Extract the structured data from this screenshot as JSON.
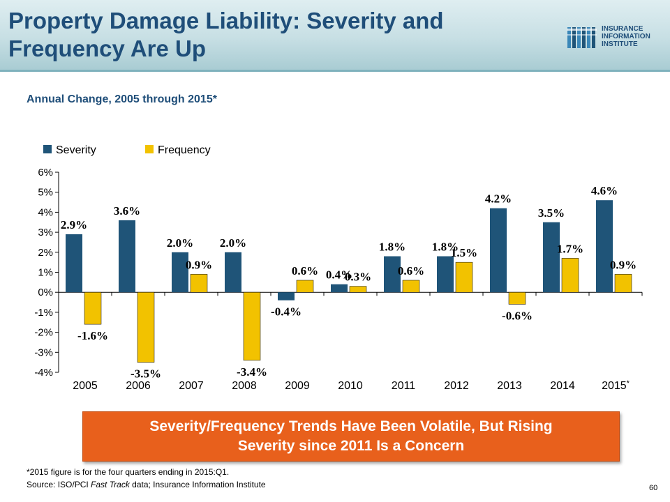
{
  "slide": {
    "title_line1": "Property Damage Liability: Severity and",
    "title_line2": "Frequency Are Up",
    "subtitle": "Annual Change, 2005 through 2015*",
    "logo": {
      "line1": "INSURANCE",
      "line2": "INFORMATION",
      "line3": "INSTITUTE"
    },
    "callout_line1": "Severity/Frequency Trends Have Been Volatile, But Rising",
    "callout_line2": "Severity since 2011 Is a Concern",
    "footnote": "*2015 figure is for the four quarters ending in 2015:Q1.",
    "source_prefix": "Source: ISO/PCI ",
    "source_italic": "Fast Track",
    "source_suffix": " data; Insurance Information Institute",
    "page_number": "60"
  },
  "colors": {
    "severity": "#1f5478",
    "frequency": "#f2c200",
    "title": "#1f4e79",
    "callout": "#e8601c"
  },
  "chart_data": {
    "type": "bar",
    "categories": [
      "2005",
      "2006",
      "2007",
      "2008",
      "2009",
      "2010",
      "2011",
      "2012",
      "2013",
      "2014",
      "2015"
    ],
    "category_suffix": {
      "10": "*"
    },
    "series": [
      {
        "name": "Severity",
        "values": [
          2.9,
          3.6,
          2.0,
          2.0,
          -0.4,
          0.4,
          1.8,
          1.8,
          4.2,
          3.5,
          4.6
        ],
        "labels": [
          "2.9%",
          "3.6%",
          "2.0%",
          "2.0%",
          "-0.4%",
          "0.4%",
          "1.8%",
          "1.8%",
          "4.2%",
          "3.5%",
          "4.6%"
        ]
      },
      {
        "name": "Frequency",
        "values": [
          -1.6,
          -3.5,
          0.9,
          -3.4,
          0.6,
          0.3,
          0.6,
          1.5,
          -0.6,
          1.7,
          0.9
        ],
        "labels": [
          "-1.6%",
          "-3.5%",
          "0.9%",
          "-3.4%",
          "0.6%",
          "0.3%",
          "0.6%",
          "1.5%",
          "-0.6%",
          "1.7%",
          "0.9%"
        ]
      }
    ],
    "ylim": [
      -4,
      6
    ],
    "yticks": [
      "-4%",
      "-3%",
      "-2%",
      "-1%",
      "0%",
      "1%",
      "2%",
      "3%",
      "4%",
      "5%",
      "6%"
    ],
    "legend": "top-left",
    "grid": false
  }
}
